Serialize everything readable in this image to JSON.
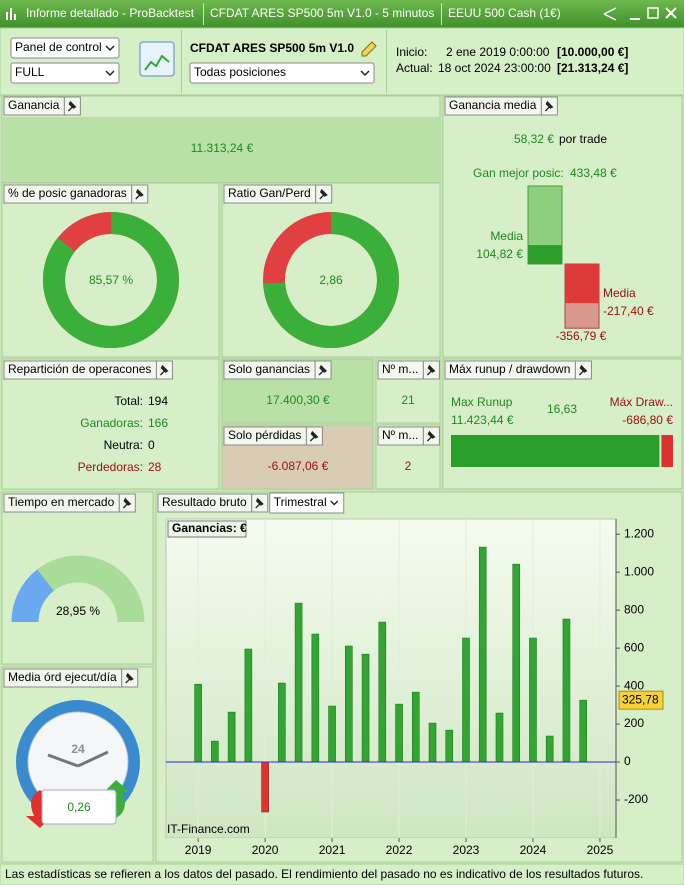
{
  "window": {
    "title": "Informe detallado - ProBacktest",
    "tabs": [
      "CFDAT ARES SP500 5m V1.0 - 5 minutos",
      "EEUU 500 Cash (1€)"
    ]
  },
  "header": {
    "view_select": "Panel de control",
    "mode_select": "FULL",
    "strategy": "CFDAT ARES SP500 5m V1.0",
    "positions_select": "Todas posiciones",
    "start_label": "Inicio:",
    "start_date": "2 ene 2019 0:00:00",
    "start_capital": "[10.000,00 €]",
    "end_label": "Actual:",
    "end_date": "18 oct 2024 23:00:00",
    "end_capital": "[21.313,24 €]"
  },
  "gain": {
    "title": "Ganancia",
    "value": {
      "value": 11313.24,
      "label": "11.313,24 €"
    }
  },
  "win_pct": {
    "title": "% de posic ganadoras",
    "value": {
      "value": 85.57,
      "label": "85,57 %"
    }
  },
  "ratio": {
    "title": "Ratio Gan/Perd",
    "value": "2,86"
  },
  "avg_gain": {
    "title": "Ganancia media",
    "value": {
      "value": 58.32,
      "label": "58,32 €"
    },
    "suffix": "por trade",
    "best_label": "Gan mejor posic:",
    "best": {
      "value": 433.48,
      "label": "433,48 €"
    },
    "avg_win_label": "Media",
    "avg_win": {
      "value": 104.82,
      "label": "104,82 €"
    },
    "avg_loss_label": "Media",
    "avg_loss": {
      "value": -217.4,
      "label": "-217,40 €"
    },
    "worst": {
      "value": -356.79,
      "label": "-356,79 €"
    }
  },
  "distribution": {
    "title": "Repartición de operacones",
    "rows": [
      {
        "label": "Total:",
        "value": 194
      },
      {
        "label": "Ganadoras:",
        "value": 166
      },
      {
        "label": "Neutra:",
        "value": 0
      },
      {
        "label": "Perdedoras:",
        "value": 28
      }
    ]
  },
  "gains_only": {
    "title": "Solo ganancias",
    "value": {
      "value": 17400.3,
      "label": "17.400,30 €"
    },
    "count_title": "Nº m...",
    "count": 21
  },
  "losses_only": {
    "title": "Solo pérdidas",
    "value": {
      "value": -6087.06,
      "label": "-6.087,06 €"
    },
    "count_title": "Nº m...",
    "count": 2
  },
  "runup": {
    "title": "Máx runup / drawdown",
    "runup_label": "Max Runup",
    "runup": {
      "value": 11423.44,
      "label": "11.423,44 €"
    },
    "ratio": "16,63",
    "drawdown_label": "Máx Draw...",
    "drawdown": {
      "value": -686.8,
      "label": "-686,80 €"
    }
  },
  "market_time": {
    "title": "Tiempo en mercado",
    "value": {
      "value": 28.95,
      "label": "28,95 %"
    }
  },
  "orders": {
    "title": "Media órd ejecut/día",
    "clock": "24",
    "value": "0,26"
  },
  "chart_data": {
    "type": "bar",
    "title": "Resultado bruto",
    "period_select": "Trimestral",
    "legend": "Ganancias: €",
    "watermark": "IT-Finance.com",
    "x": [
      2019,
      2019.25,
      2019.5,
      2019.75,
      2020,
      2020.25,
      2020.5,
      2020.75,
      2021,
      2021.25,
      2021.5,
      2021.75,
      2022,
      2022.25,
      2022.5,
      2022.75,
      2023,
      2023.25,
      2023.5,
      2023.75,
      2024,
      2024.25,
      2024.5,
      2024.75
    ],
    "values": [
      410,
      110,
      263,
      595,
      -263,
      416,
      837,
      674,
      295,
      611,
      568,
      737,
      305,
      368,
      205,
      168,
      653,
      1132,
      258,
      1042,
      653,
      137,
      753,
      325.78
    ],
    "color": "#33a532",
    "negative_color": "#e03030",
    "zero_line_color": "#2a2ad0",
    "xlim": [
      2018.52,
      2025.24
    ],
    "xticks": [
      2019,
      2020,
      2021,
      2022,
      2023,
      2024,
      2025
    ],
    "ylim": [
      -400,
      1280
    ],
    "yticks": [
      -200,
      0,
      200,
      400,
      600,
      800,
      {
        "value": 1000,
        "label": "1.000"
      },
      {
        "value": 1200,
        "label": "1.200"
      }
    ],
    "current_value": {
      "value": 325.78,
      "label": "325,78"
    }
  },
  "footer": "Las estadísticas se refieren a los datos del pasado. El rendimiento del pasado no es indicativo de los resultados futuros."
}
